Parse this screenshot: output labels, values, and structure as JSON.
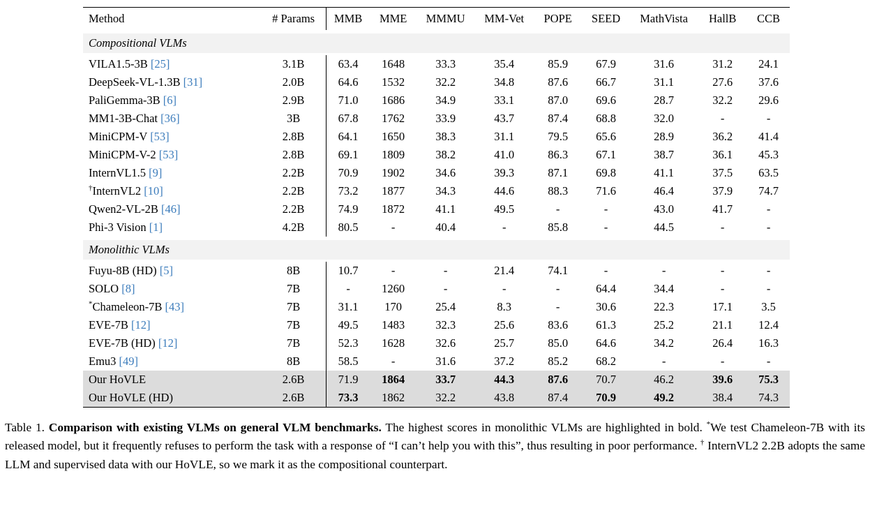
{
  "colors": {
    "cite": "#3d7dbc",
    "section_bg": "#f2f2f2",
    "highlight_bg": "#dcdcdc",
    "rule": "#000000"
  },
  "table": {
    "columns": [
      "Method",
      "# Params",
      "MMB",
      "MME",
      "MMMU",
      "MM-Vet",
      "POPE",
      "SEED",
      "MathVista",
      "HallB",
      "CCB"
    ],
    "sections": [
      {
        "title": "Compositional VLMs",
        "rows": [
          {
            "sup": "",
            "method": "VILA1.5-3B",
            "cite": "[25]",
            "params": "3.1B",
            "values": [
              "63.4",
              "1648",
              "33.3",
              "35.4",
              "85.9",
              "67.9",
              "31.6",
              "31.2",
              "24.1"
            ],
            "bold": [],
            "highlight": false
          },
          {
            "sup": "",
            "method": "DeepSeek-VL-1.3B",
            "cite": "[31]",
            "params": "2.0B",
            "values": [
              "64.6",
              "1532",
              "32.2",
              "34.8",
              "87.6",
              "66.7",
              "31.1",
              "27.6",
              "37.6"
            ],
            "bold": [],
            "highlight": false
          },
          {
            "sup": "",
            "method": "PaliGemma-3B",
            "cite": "[6]",
            "params": "2.9B",
            "values": [
              "71.0",
              "1686",
              "34.9",
              "33.1",
              "87.0",
              "69.6",
              "28.7",
              "32.2",
              "29.6"
            ],
            "bold": [],
            "highlight": false
          },
          {
            "sup": "",
            "method": "MM1-3B-Chat",
            "cite": "[36]",
            "params": "3B",
            "values": [
              "67.8",
              "1762",
              "33.9",
              "43.7",
              "87.4",
              "68.8",
              "32.0",
              "-",
              "-"
            ],
            "bold": [],
            "highlight": false
          },
          {
            "sup": "",
            "method": "MiniCPM-V",
            "cite": "[53]",
            "params": "2.8B",
            "values": [
              "64.1",
              "1650",
              "38.3",
              "31.1",
              "79.5",
              "65.6",
              "28.9",
              "36.2",
              "41.4"
            ],
            "bold": [],
            "highlight": false
          },
          {
            "sup": "",
            "method": "MiniCPM-V-2",
            "cite": "[53]",
            "params": "2.8B",
            "values": [
              "69.1",
              "1809",
              "38.2",
              "41.0",
              "86.3",
              "67.1",
              "38.7",
              "36.1",
              "45.3"
            ],
            "bold": [],
            "highlight": false
          },
          {
            "sup": "",
            "method": "InternVL1.5",
            "cite": "[9]",
            "params": "2.2B",
            "values": [
              "70.9",
              "1902",
              "34.6",
              "39.3",
              "87.1",
              "69.8",
              "41.1",
              "37.5",
              "63.5"
            ],
            "bold": [],
            "highlight": false
          },
          {
            "sup": "†",
            "method": "InternVL2",
            "cite": "[10]",
            "params": "2.2B",
            "values": [
              "73.2",
              "1877",
              "34.3",
              "44.6",
              "88.3",
              "71.6",
              "46.4",
              "37.9",
              "74.7"
            ],
            "bold": [],
            "highlight": false
          },
          {
            "sup": "",
            "method": "Qwen2-VL-2B",
            "cite": "[46]",
            "params": "2.2B",
            "values": [
              "74.9",
              "1872",
              "41.1",
              "49.5",
              "-",
              "-",
              "43.0",
              "41.7",
              "-"
            ],
            "bold": [],
            "highlight": false
          },
          {
            "sup": "",
            "method": "Phi-3 Vision",
            "cite": "[1]",
            "params": "4.2B",
            "values": [
              "80.5",
              "-",
              "40.4",
              "-",
              "85.8",
              "-",
              "44.5",
              "-",
              "-"
            ],
            "bold": [],
            "highlight": false
          }
        ]
      },
      {
        "title": "Monolithic VLMs",
        "rows": [
          {
            "sup": "",
            "method": "Fuyu-8B (HD)",
            "cite": "[5]",
            "params": "8B",
            "values": [
              "10.7",
              "-",
              "-",
              "21.4",
              "74.1",
              "-",
              "-",
              "-",
              "-"
            ],
            "bold": [],
            "highlight": false
          },
          {
            "sup": "",
            "method": "SOLO",
            "cite": "[8]",
            "params": "7B",
            "values": [
              "-",
              "1260",
              "-",
              "-",
              "-",
              "64.4",
              "34.4",
              "-",
              "-"
            ],
            "bold": [],
            "highlight": false
          },
          {
            "sup": "*",
            "method": "Chameleon-7B",
            "cite": "[43]",
            "params": "7B",
            "values": [
              "31.1",
              "170",
              "25.4",
              "8.3",
              "-",
              "30.6",
              "22.3",
              "17.1",
              "3.5"
            ],
            "bold": [],
            "highlight": false
          },
          {
            "sup": "",
            "method": "EVE-7B",
            "cite": "[12]",
            "params": "7B",
            "values": [
              "49.5",
              "1483",
              "32.3",
              "25.6",
              "83.6",
              "61.3",
              "25.2",
              "21.1",
              "12.4"
            ],
            "bold": [],
            "highlight": false
          },
          {
            "sup": "",
            "method": "EVE-7B (HD)",
            "cite": "[12]",
            "params": "7B",
            "values": [
              "52.3",
              "1628",
              "32.6",
              "25.7",
              "85.0",
              "64.6",
              "34.2",
              "26.4",
              "16.3"
            ],
            "bold": [],
            "highlight": false
          },
          {
            "sup": "",
            "method": "Emu3",
            "cite": "[49]",
            "params": "8B",
            "values": [
              "58.5",
              "-",
              "31.6",
              "37.2",
              "85.2",
              "68.2",
              "-",
              "-",
              "-"
            ],
            "bold": [],
            "highlight": false
          },
          {
            "sup": "",
            "method": "Our HoVLE",
            "cite": "",
            "params": "2.6B",
            "values": [
              "71.9",
              "1864",
              "33.7",
              "44.3",
              "87.6",
              "70.7",
              "46.2",
              "39.6",
              "75.3"
            ],
            "bold": [
              1,
              2,
              3,
              4,
              7,
              8
            ],
            "highlight": true
          },
          {
            "sup": "",
            "method": "Our HoVLE (HD)",
            "cite": "",
            "params": "2.6B",
            "values": [
              "73.3",
              "1862",
              "32.2",
              "43.8",
              "87.4",
              "70.9",
              "49.2",
              "38.4",
              "74.3"
            ],
            "bold": [
              0,
              5,
              6
            ],
            "highlight": true
          }
        ]
      }
    ]
  },
  "caption": {
    "label": "Table 1.",
    "title": "Comparison with existing VLMs on general VLM benchmarks.",
    "text1": "The highest scores in monolithic VLMs are highlighted in bold.",
    "sup1": "*",
    "text2": "We test Chameleon-7B with its released model, but it frequently refuses to perform the task with a response of “I can’t help you with this”, thus resulting in poor performance.",
    "sup2": "†",
    "text3": "InternVL2 2.2B adopts the same LLM and supervised data with our HoVLE, so we mark it as the compositional counterpart."
  }
}
